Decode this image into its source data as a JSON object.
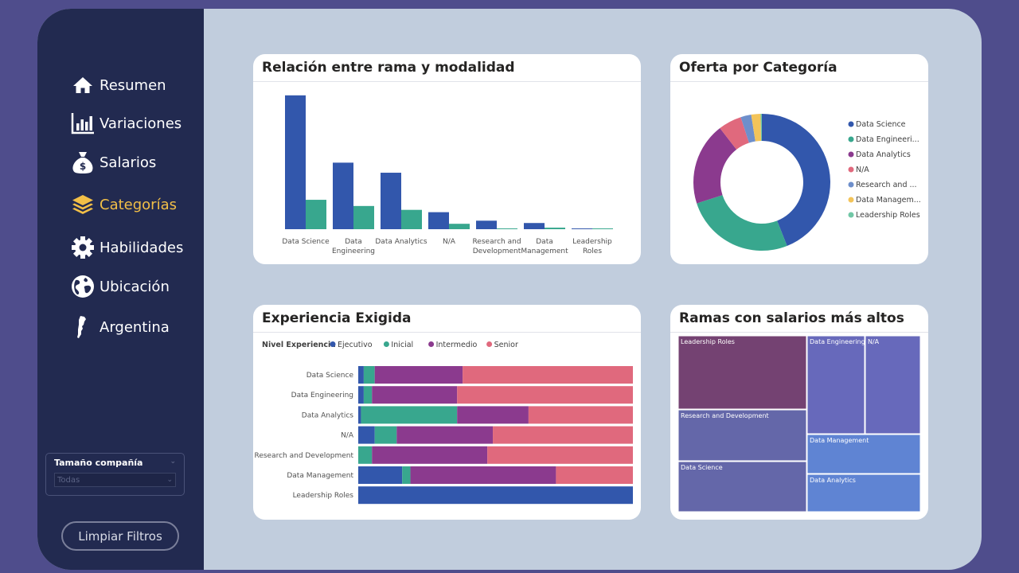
{
  "sidebar": {
    "items": [
      {
        "label": "Resumen",
        "icon": "home-icon"
      },
      {
        "label": "Variaciones",
        "icon": "bar-chart-icon"
      },
      {
        "label": "Salarios",
        "icon": "money-bag-icon"
      },
      {
        "label": "Categorías",
        "icon": "layers-icon",
        "active": true
      },
      {
        "label": "Habilidades",
        "icon": "gear-icon"
      },
      {
        "label": "Ubicación",
        "icon": "globe-icon"
      },
      {
        "label": "Argentina",
        "icon": "argentina-map-icon"
      }
    ],
    "slicer": {
      "title": "Tamaño compañía",
      "value": "Todas"
    },
    "clear_button": "Limpiar Filtros"
  },
  "colors": {
    "data_science": "#3257ac",
    "data_engineering": "#38a78e",
    "data_analytics": "#8b3a8e",
    "na": "#e0697d",
    "research": "#6e8fcb",
    "data_management": "#f3c45a",
    "leadership": "#71c7a6",
    "accent_active": "#f2bf47",
    "sidebar_bg": "#222a50"
  },
  "cards": {
    "rama_modalidad": {
      "title": "Relación entre rama y modalidad",
      "chart_data": {
        "type": "bar",
        "categories": [
          "Data Science",
          "Data Engineering",
          "Data Analytics",
          "N/A",
          "Research and Development",
          "Data Management",
          "Leadership Roles"
        ],
        "category_lines": [
          [
            "Data Science"
          ],
          [
            "Data",
            "Engineering"
          ],
          [
            "Data Analytics"
          ],
          [
            "N/A"
          ],
          [
            "Research and",
            "Development"
          ],
          [
            "Data",
            "Management"
          ],
          [
            "Leadership",
            "Roles"
          ]
        ],
        "series": [
          {
            "values": [
              173,
              86,
              73,
              22,
              11,
              8,
              1
            ],
            "color": "#3257ac"
          },
          {
            "values": [
              38,
              30,
              25,
              7,
              1,
              2,
              1
            ],
            "color": "#38a78e"
          }
        ],
        "ylim": [
          0,
          180
        ]
      }
    },
    "oferta_categoria": {
      "title": "Oferta por Categoría",
      "chart_data": {
        "type": "pie",
        "labels": [
          "Data Science",
          "Data Engineeri...",
          "Data Analytics",
          "N/A",
          "Research and ...",
          "Data Managem...",
          "Leadership Roles"
        ],
        "values": [
          44,
          26,
          19.5,
          5.5,
          2.5,
          2.2,
          0.3
        ],
        "colors": [
          "#3257ac",
          "#38a78e",
          "#8b3a8e",
          "#e0697d",
          "#6e8fcb",
          "#f3c45a",
          "#71c7a6"
        ]
      }
    },
    "experiencia": {
      "title": "Experiencia Exigida",
      "legend_title": "Nivel Experiencia",
      "chart_data": {
        "type": "bar",
        "orientation": "horizontal",
        "stacked": "100%",
        "categories": [
          "Data Science",
          "Data Engineering",
          "Data Analytics",
          "N/A",
          "Research and Development",
          "Data Management",
          "Leadership Roles"
        ],
        "series": [
          {
            "name": "Ejecutivo",
            "color": "#3257ac",
            "values": [
              2,
              2,
              1,
              6,
              0,
              16,
              100
            ]
          },
          {
            "name": "Inicial",
            "color": "#38a78e",
            "values": [
              4,
              3,
              35,
              8,
              5,
              3,
              0
            ]
          },
          {
            "name": "Intermedio",
            "color": "#8b3a8e",
            "values": [
              32,
              31,
              26,
              35,
              42,
              53,
              0
            ]
          },
          {
            "name": "Senior",
            "color": "#e0697d",
            "values": [
              62,
              64,
              38,
              51,
              53,
              28,
              0
            ]
          }
        ],
        "xlim": [
          0,
          100
        ]
      }
    },
    "salarios_altos": {
      "title": "Ramas con salarios más altos",
      "chart_data": {
        "type": "treemap",
        "labels": [
          "Leadership Roles",
          "Research and Development",
          "Data Science",
          "Data Engineering",
          "N/A",
          "Data Management",
          "Data Analytics"
        ],
        "colors": [
          "#744272",
          "#6467a9",
          "#6467a9",
          "#6769bb",
          "#6769bb",
          "#5f84d3",
          "#5f84d3"
        ]
      }
    }
  }
}
